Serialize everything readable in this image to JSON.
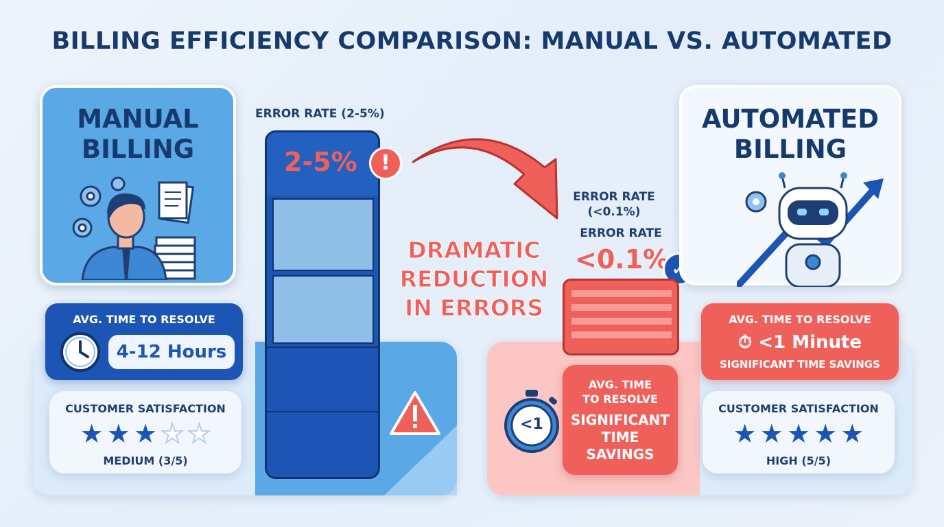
{
  "title": "BILLING EFFICIENCY COMPARISON: MANUAL VS. AUTOMATED",
  "manual": {
    "heading_line1": "MANUAL",
    "heading_line2": "BILLING",
    "error_label": "ERROR RATE (2-5%)",
    "error_value": "2-5%",
    "time_label": "AVG. TIME TO RESOLVE",
    "time_value": "4-12 Hours",
    "satisfaction_label": "CUSTOMER SATISFACTION",
    "satisfaction_stars": 3,
    "satisfaction_max": 5,
    "satisfaction_text": "MEDIUM (3/5)"
  },
  "middle": {
    "line1": "DRAMATIC",
    "line2": "REDUCTION",
    "line3": "IN ERRORS"
  },
  "automated": {
    "heading_line1": "AUTOMATED",
    "heading_line2": "BILLING",
    "error_label_a_line1": "ERROR RATE",
    "error_label_a_line2": "(<0.1%)",
    "error_label_b": "ERROR RATE",
    "error_value": "<0.1%",
    "time_label": "AVG. TIME TO RESOLVE",
    "time_value": "<1 Minute",
    "time_sub": "SIGNIFICANT TIME SAVINGS",
    "time_card_label_line1": "AVG. TIME",
    "time_card_label_line2": "TO RESOLVE",
    "time_card_value_line1": "SIGNIFICANT",
    "time_card_value_line2": "TIME",
    "time_card_value_line3": "SAVINGS",
    "stopwatch_text": "<1",
    "satisfaction_label": "CUSTOMER SATISFACTION",
    "satisfaction_stars": 5,
    "satisfaction_max": 5,
    "satisfaction_text": "HIGH (5/5)"
  },
  "icons": {
    "warning": "!",
    "check": "✓",
    "star_filled": "★",
    "star_empty": "☆",
    "stopwatch": "⏱"
  },
  "colors": {
    "navy": "#173a6e",
    "blue": "#1d55b4",
    "light_blue": "#5aa9e6",
    "red": "#f0605a",
    "pink": "#fbc6c4"
  }
}
